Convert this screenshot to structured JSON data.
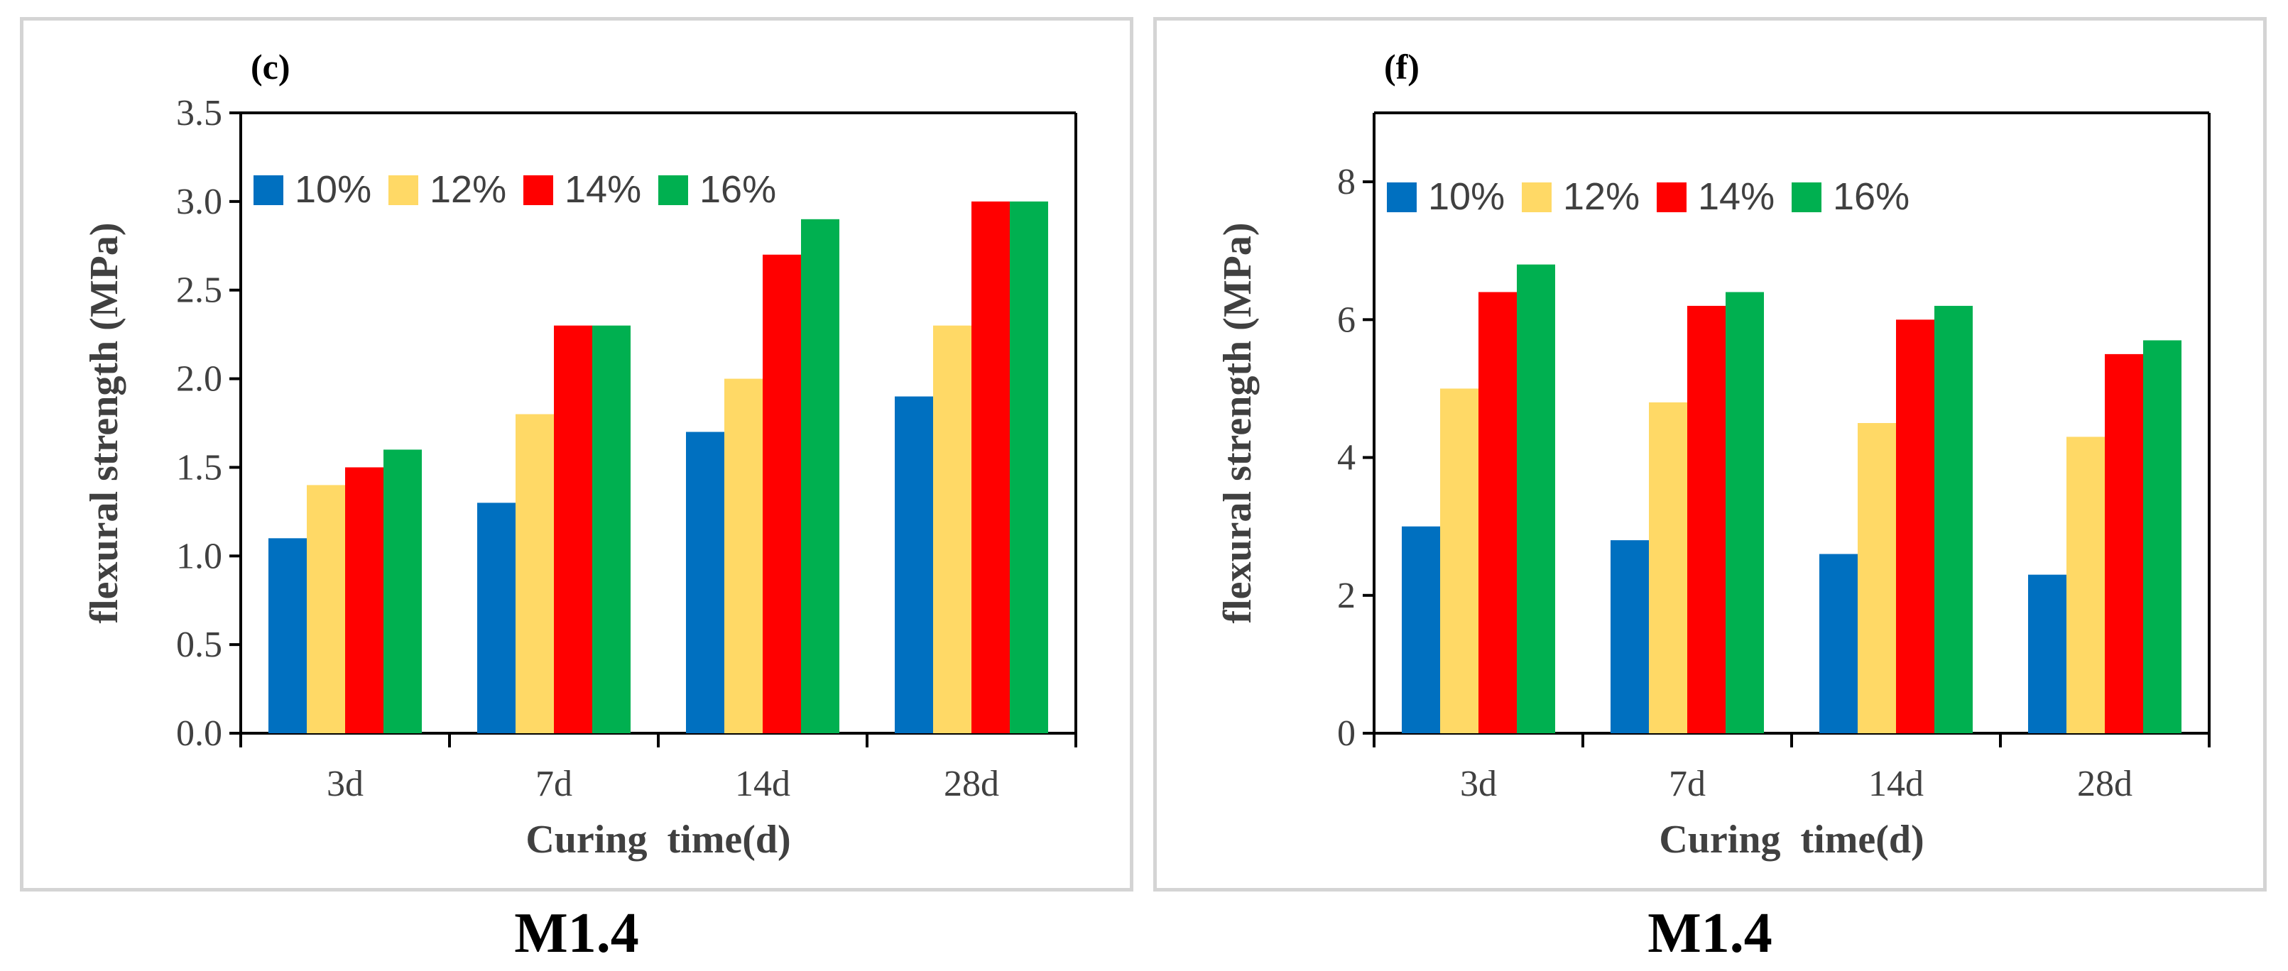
{
  "colors": {
    "10%": "#0070c0",
    "12%": "#ffd966",
    "14%": "#ff0000",
    "16%": "#00b050"
  },
  "chart_data": [
    {
      "type": "bar",
      "panel_label": "(c)",
      "caption": "M1.4",
      "categories": [
        "3d",
        "7d",
        "14d",
        "28d"
      ],
      "series": [
        {
          "name": "10%",
          "values": [
            1.1,
            1.3,
            1.7,
            1.9
          ]
        },
        {
          "name": "12%",
          "values": [
            1.4,
            1.8,
            2.0,
            2.3
          ]
        },
        {
          "name": "14%",
          "values": [
            1.5,
            2.3,
            2.7,
            3.0
          ]
        },
        {
          "name": "16%",
          "values": [
            1.6,
            2.3,
            2.9,
            3.0
          ]
        }
      ],
      "xlabel": "Curing  time(d)",
      "ylabel": "flexural strength (MPa)",
      "ylim": [
        0,
        3.5
      ],
      "yticks": [
        "0.0",
        "0.5",
        "1.0",
        "1.5",
        "2.0",
        "2.5",
        "3.0",
        "3.5"
      ],
      "legend": "top-left"
    },
    {
      "type": "bar",
      "panel_label": "(f)",
      "caption": "M1.4",
      "categories": [
        "3d",
        "7d",
        "14d",
        "28d"
      ],
      "series": [
        {
          "name": "10%",
          "values": [
            3.0,
            2.8,
            2.6,
            2.3
          ]
        },
        {
          "name": "12%",
          "values": [
            5.0,
            4.8,
            4.5,
            4.3
          ]
        },
        {
          "name": "14%",
          "values": [
            6.4,
            6.2,
            6.0,
            5.5
          ]
        },
        {
          "name": "16%",
          "values": [
            6.8,
            6.4,
            6.2,
            5.7
          ]
        }
      ],
      "xlabel": "Curing  time(d)",
      "ylabel": "flexural strength (MPa)",
      "ylim": [
        0,
        9
      ],
      "yticks": [
        "0",
        "2",
        "4",
        "6",
        "8"
      ],
      "legend": "top-left"
    }
  ]
}
